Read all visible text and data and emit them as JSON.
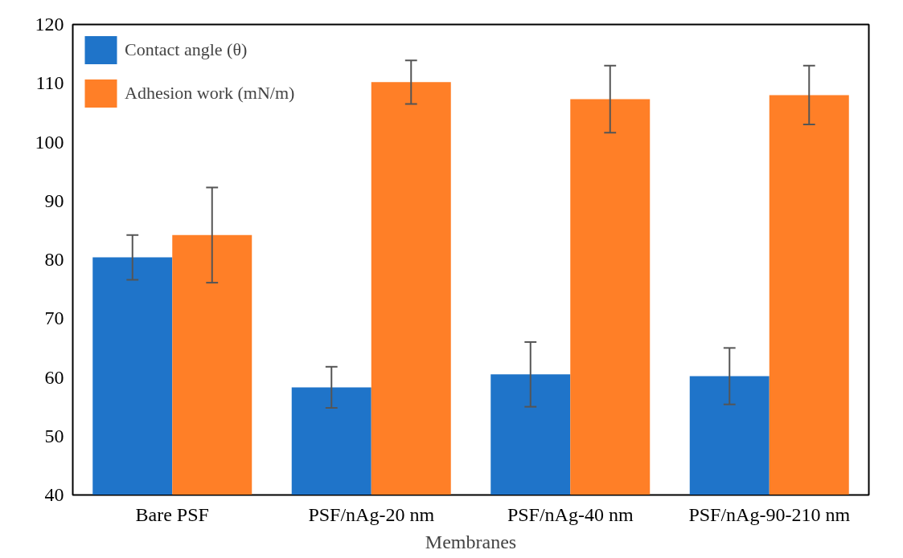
{
  "chart_data": {
    "type": "bar",
    "xlabel": "Membranes",
    "categories": [
      "Bare PSF",
      "PSF/nAg-20 nm",
      "PSF/nAg-40 nm",
      "PSF/nAg-90-210 nm"
    ],
    "series": [
      {
        "name": "Contact angle (θ)",
        "color": "#1f74c9",
        "values": [
          80.4,
          58.3,
          60.5,
          60.2
        ],
        "errors": [
          3.8,
          3.5,
          5.5,
          4.8
        ]
      },
      {
        "name": "Adhesion work (mN/m)",
        "color": "#ff7f27",
        "values": [
          84.2,
          110.2,
          107.3,
          108.0
        ],
        "errors": [
          8.1,
          3.7,
          5.7,
          5.0
        ]
      }
    ],
    "ylim": [
      40,
      120
    ],
    "yticks": [
      40,
      50,
      60,
      70,
      80,
      90,
      100,
      110,
      120
    ],
    "grid": false,
    "legend": "top left"
  }
}
